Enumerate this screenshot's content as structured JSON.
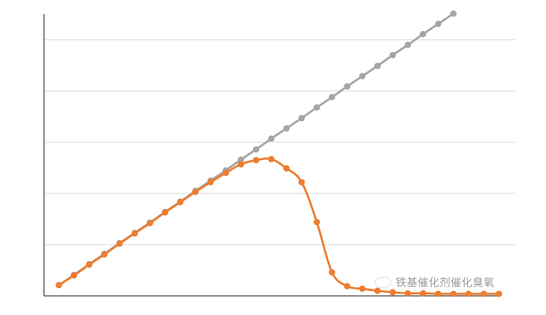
{
  "chart_data": {
    "type": "line",
    "title": "",
    "xlabel": "",
    "ylabel": "",
    "ylim": [
      0,
      5.5
    ],
    "grid": true,
    "legend": "none",
    "series": [
      {
        "color": "#a5a5a5",
        "values": [
          0.21,
          0.41,
          0.62,
          0.82,
          1.03,
          1.23,
          1.43,
          1.64,
          1.84,
          2.05,
          2.25,
          2.45,
          2.66,
          2.86,
          3.07,
          3.27,
          3.47,
          3.68,
          3.88,
          4.09,
          4.29,
          4.49,
          4.7,
          4.9,
          5.11,
          5.31,
          5.51
        ]
      },
      {
        "color": "#ed7d31",
        "values": [
          0.21,
          0.4,
          0.61,
          0.81,
          1.02,
          1.22,
          1.42,
          1.63,
          1.83,
          2.03,
          2.22,
          2.4,
          2.57,
          2.65,
          2.67,
          2.49,
          2.22,
          1.44,
          0.46,
          0.19,
          0.14,
          0.1,
          0.07,
          0.05,
          0.05,
          0.04,
          0.04,
          0.04,
          0.04,
          0.04
        ]
      }
    ]
  },
  "watermark": {
    "text": "铁基催化剂催化臭氧",
    "icon": "wechat-icon"
  }
}
